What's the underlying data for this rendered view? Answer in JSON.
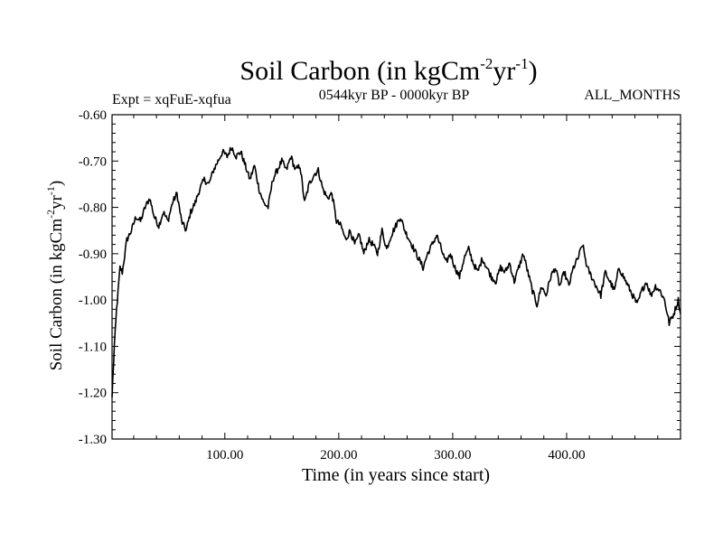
{
  "chart_data": {
    "type": "line",
    "title": {
      "main": "Soil Carbon (in kgCm",
      "sup1": "-2",
      "mid": "yr",
      "sup2": "-1",
      "end": ")"
    },
    "subtitle_left": "Expt = xqFuE-xqfua",
    "subtitle_center": "0544kyr BP - 0000kyr BP",
    "subtitle_right": "ALL_MONTHS",
    "xlabel": "Time (in years since start)",
    "ylabel": {
      "main": "Soil Carbon (in kgCm",
      "sup1": "-2",
      "mid": "yr",
      "sup2": "-1",
      "end": ")"
    },
    "xlim": [
      1,
      500
    ],
    "ylim": [
      -1.3,
      -0.6
    ],
    "x_ticks": [
      100,
      200,
      300,
      400
    ],
    "x_tick_labels": [
      "100.00",
      "200.00",
      "300.00",
      "400.00"
    ],
    "y_ticks": [
      -1.3,
      -1.2,
      -1.1,
      -1.0,
      -0.9,
      -0.8,
      -0.7,
      -0.6
    ],
    "y_tick_labels": [
      "-1.30",
      "-1.20",
      "-1.10",
      "-1.00",
      "-0.90",
      "-0.80",
      "-0.70",
      "-0.60"
    ],
    "series": [
      {
        "name": "Soil Carbon",
        "color": "#000000",
        "x": [
          1,
          3,
          5,
          8,
          10,
          14,
          18,
          22,
          26,
          30,
          34,
          38,
          42,
          46,
          50,
          54,
          58,
          62,
          66,
          70,
          74,
          78,
          82,
          86,
          90,
          94,
          98,
          102,
          106,
          110,
          114,
          118,
          122,
          126,
          130,
          134,
          138,
          142,
          146,
          150,
          154,
          158,
          162,
          166,
          170,
          174,
          178,
          182,
          186,
          190,
          194,
          198,
          202,
          206,
          210,
          214,
          218,
          222,
          226,
          230,
          234,
          238,
          242,
          246,
          250,
          254,
          258,
          262,
          266,
          270,
          274,
          278,
          282,
          286,
          290,
          294,
          298,
          302,
          306,
          310,
          314,
          318,
          322,
          326,
          330,
          334,
          338,
          342,
          346,
          350,
          354,
          358,
          362,
          366,
          370,
          374,
          378,
          382,
          386,
          390,
          394,
          398,
          402,
          406,
          410,
          414,
          418,
          422,
          426,
          430,
          434,
          438,
          442,
          446,
          450,
          454,
          458,
          462,
          466,
          470,
          474,
          478,
          482,
          486,
          490,
          494,
          498,
          500
        ],
        "values": [
          -1.21,
          -1.1,
          -1.02,
          -0.93,
          -0.94,
          -0.87,
          -0.85,
          -0.82,
          -0.83,
          -0.8,
          -0.78,
          -0.82,
          -0.84,
          -0.81,
          -0.83,
          -0.79,
          -0.77,
          -0.83,
          -0.85,
          -0.81,
          -0.79,
          -0.76,
          -0.74,
          -0.75,
          -0.72,
          -0.7,
          -0.68,
          -0.69,
          -0.67,
          -0.69,
          -0.68,
          -0.71,
          -0.74,
          -0.71,
          -0.76,
          -0.79,
          -0.8,
          -0.74,
          -0.72,
          -0.7,
          -0.72,
          -0.69,
          -0.72,
          -0.71,
          -0.79,
          -0.75,
          -0.73,
          -0.72,
          -0.76,
          -0.78,
          -0.77,
          -0.83,
          -0.84,
          -0.87,
          -0.85,
          -0.88,
          -0.86,
          -0.9,
          -0.87,
          -0.88,
          -0.9,
          -0.85,
          -0.89,
          -0.86,
          -0.84,
          -0.82,
          -0.85,
          -0.87,
          -0.89,
          -0.91,
          -0.93,
          -0.9,
          -0.88,
          -0.86,
          -0.89,
          -0.92,
          -0.9,
          -0.93,
          -0.95,
          -0.91,
          -0.89,
          -0.92,
          -0.94,
          -0.91,
          -0.93,
          -0.95,
          -0.96,
          -0.93,
          -0.94,
          -0.92,
          -0.96,
          -0.93,
          -0.9,
          -0.94,
          -0.98,
          -1.01,
          -0.97,
          -0.99,
          -0.95,
          -0.93,
          -0.97,
          -0.94,
          -0.97,
          -0.93,
          -0.91,
          -0.88,
          -0.93,
          -0.95,
          -0.97,
          -0.99,
          -0.94,
          -0.96,
          -0.98,
          -0.93,
          -0.95,
          -0.97,
          -0.99,
          -1.01,
          -0.98,
          -0.96,
          -0.99,
          -0.97,
          -0.98,
          -1.0,
          -1.05,
          -1.03,
          -1.0,
          -1.03
        ]
      }
    ]
  }
}
